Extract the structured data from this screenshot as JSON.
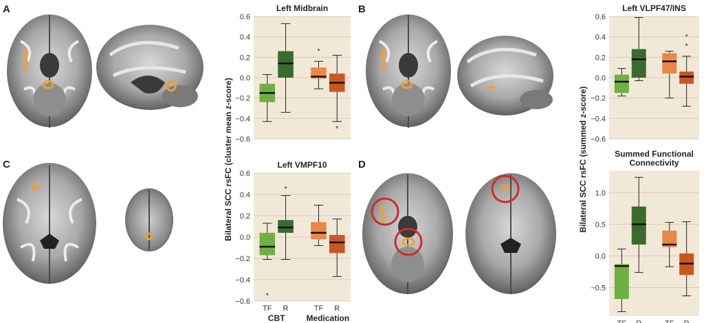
{
  "panels": {
    "a": "A",
    "b": "B",
    "c": "C",
    "d": "D"
  },
  "colors": {
    "plot_bg": "#f2e8d8",
    "grid": "#d9ccb6",
    "cbt_tf": "#6fb043",
    "cbt_r": "#3a6b2c",
    "med_tf": "#ea8746",
    "med_r": "#c9571f",
    "activation": "#f0a030",
    "circle": "#d42a2a"
  },
  "ylabels": {
    "left": "Bilateral SCC rsFC (cluster mean z-score)",
    "right": "Bilateral SCC rsFC (summed z-score)"
  },
  "xaxis": {
    "tick_tf": "TF",
    "tick_r": "R",
    "group_cbt": "CBT",
    "group_med": "Medication"
  },
  "chart_data": [
    {
      "type": "box",
      "title": "Left Midbrain",
      "ylim": [
        -0.6,
        0.6
      ],
      "yticks": [
        "0.6",
        "0.4",
        "0.2",
        "0.0",
        "−0.2",
        "−0.4",
        "−0.6"
      ],
      "ytick_values": [
        0.6,
        0.4,
        0.2,
        0.0,
        -0.2,
        -0.4,
        -0.6
      ],
      "boxes": [
        {
          "group": "CBT",
          "label": "TF",
          "whisker_low": -0.43,
          "q1": -0.24,
          "median": -0.15,
          "q3": -0.06,
          "whisker_high": 0.03,
          "outliers": []
        },
        {
          "group": "CBT",
          "label": "R",
          "whisker_low": -0.34,
          "q1": 0.0,
          "median": 0.14,
          "q3": 0.26,
          "whisker_high": 0.53,
          "outliers": []
        },
        {
          "group": "Medication",
          "label": "TF",
          "whisker_low": -0.11,
          "q1": -0.01,
          "median": 0.01,
          "q3": 0.1,
          "whisker_high": 0.16,
          "outliers": [
            0.27
          ]
        },
        {
          "group": "Medication",
          "label": "R",
          "whisker_low": -0.43,
          "q1": -0.14,
          "median": -0.05,
          "q3": 0.04,
          "whisker_high": 0.22,
          "outliers": [
            -0.49
          ]
        }
      ]
    },
    {
      "type": "box",
      "title": "Left VLPF47/INS",
      "ylim": [
        -0.6,
        0.6
      ],
      "yticks": [
        "0.6",
        "0.4",
        "0.2",
        "0.0",
        "−0.2",
        "−0.4",
        "−0.6"
      ],
      "ytick_values": [
        0.6,
        0.4,
        0.2,
        0.0,
        -0.2,
        -0.4,
        -0.6
      ],
      "boxes": [
        {
          "group": "CBT",
          "label": "TF",
          "whisker_low": -0.18,
          "q1": -0.15,
          "median": -0.04,
          "q3": 0.03,
          "whisker_high": 0.09,
          "outliers": []
        },
        {
          "group": "CBT",
          "label": "R",
          "whisker_low": -0.03,
          "q1": 0.0,
          "median": 0.18,
          "q3": 0.28,
          "whisker_high": 0.59,
          "outliers": []
        },
        {
          "group": "Medication",
          "label": "TF",
          "whisker_low": -0.2,
          "q1": 0.04,
          "median": 0.16,
          "q3": 0.24,
          "whisker_high": 0.26,
          "outliers": []
        },
        {
          "group": "Medication",
          "label": "R",
          "whisker_low": -0.28,
          "q1": -0.06,
          "median": 0.01,
          "q3": 0.06,
          "whisker_high": 0.21,
          "outliers": [
            0.32,
            0.41
          ]
        }
      ]
    },
    {
      "type": "box",
      "title": "Left VMPF10",
      "ylim": [
        -0.6,
        0.6
      ],
      "yticks": [
        "0.6",
        "0.4",
        "0.2",
        "0.0",
        "−0.2",
        "−0.4",
        "−0.6"
      ],
      "ytick_values": [
        0.6,
        0.4,
        0.2,
        0.0,
        -0.2,
        -0.4,
        -0.6
      ],
      "boxes": [
        {
          "group": "CBT",
          "label": "TF",
          "whisker_low": -0.21,
          "q1": -0.17,
          "median": -0.09,
          "q3": 0.04,
          "whisker_high": 0.13,
          "outliers": [
            -0.54
          ]
        },
        {
          "group": "CBT",
          "label": "R",
          "whisker_low": -0.21,
          "q1": 0.04,
          "median": 0.09,
          "q3": 0.16,
          "whisker_high": 0.39,
          "outliers": [
            0.46
          ]
        },
        {
          "group": "Medication",
          "label": "TF",
          "whisker_low": -0.08,
          "q1": -0.02,
          "median": 0.04,
          "q3": 0.14,
          "whisker_high": 0.3,
          "outliers": []
        },
        {
          "group": "Medication",
          "label": "R",
          "whisker_low": -0.37,
          "q1": -0.15,
          "median": -0.05,
          "q3": 0.02,
          "whisker_high": 0.17,
          "outliers": []
        }
      ]
    },
    {
      "type": "box",
      "title": "Summed Functional Connectivity",
      "title_lines": [
        "Summed Functional",
        "Connectivity"
      ],
      "ylim": [
        -0.95,
        1.35
      ],
      "yticks": [
        "1.0",
        "0.5",
        "0.0",
        "−0.5"
      ],
      "ytick_values": [
        1.0,
        0.5,
        0.0,
        -0.5
      ],
      "boxes": [
        {
          "group": "CBT",
          "label": "TF",
          "whisker_low": -0.88,
          "q1": -0.68,
          "median": -0.16,
          "q3": -0.13,
          "whisker_high": 0.11,
          "outliers": []
        },
        {
          "group": "CBT",
          "label": "R",
          "whisker_low": -0.26,
          "q1": 0.18,
          "median": 0.5,
          "q3": 0.78,
          "whisker_high": 1.24,
          "outliers": []
        },
        {
          "group": "Medication",
          "label": "TF",
          "whisker_low": -0.17,
          "q1": 0.14,
          "median": 0.18,
          "q3": 0.4,
          "whisker_high": 0.53,
          "outliers": []
        },
        {
          "group": "Medication",
          "label": "R",
          "whisker_low": -0.63,
          "q1": -0.3,
          "median": -0.12,
          "q3": 0.04,
          "whisker_high": 0.54,
          "outliers": []
        }
      ]
    }
  ]
}
